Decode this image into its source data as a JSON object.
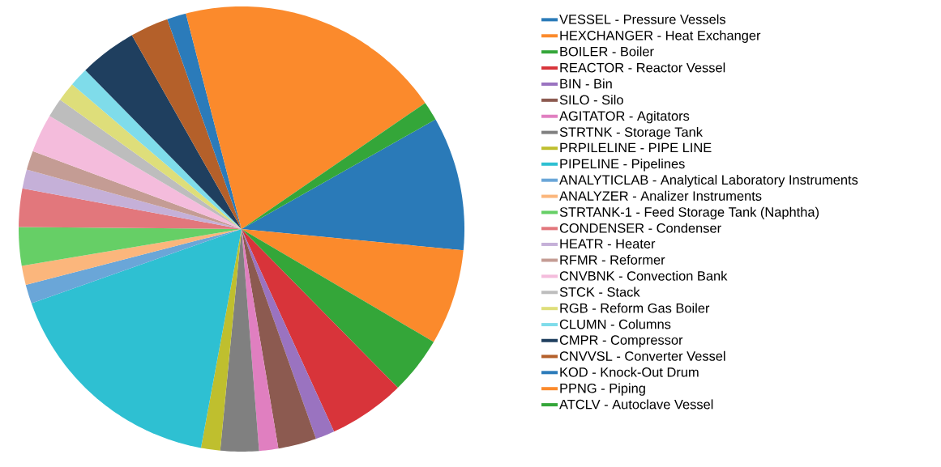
{
  "chart_data": {
    "type": "pie",
    "categories": [
      "VESSEL - Pressure Vessels",
      "HEXCHANGER - Heat Exchanger",
      "BOILER - Boiler",
      "REACTOR - Reactor Vessel",
      "BIN - Bin",
      "SILO - Silo",
      "AGITATOR - Agitators",
      "STRTNK - Storage Tank",
      "PRPILELINE - PIPE LINE",
      "PIPELINE - Pipelines",
      "ANALYTICLAB - Analytical Laboratory Instruments",
      "ANALYZER - Analizer Instruments",
      "STRTANK-1 - Feed Storage Tank (Naphtha)",
      "CONDENSER - Condenser",
      "HEATR - Heater",
      "RFMR - Reformer",
      "CNVBNK - Convection Bank",
      "STCK - Stack",
      "RGB - Reform Gas Boiler",
      "CLUMN - Columns",
      "CMPR - Compressor",
      "CNVVSL - Converter Vessel",
      "KOD - Knock-Out Drum",
      "PPNG - Piping",
      "ATCLV - Autoclave Vessel"
    ],
    "values": [
      9.72,
      6.94,
      4.17,
      5.56,
      1.39,
      2.78,
      1.39,
      2.78,
      1.39,
      16.67,
      1.39,
      1.39,
      2.78,
      2.78,
      1.39,
      1.39,
      2.78,
      1.39,
      1.39,
      1.39,
      4.17,
      2.78,
      1.39,
      19.44,
      1.39
    ],
    "colors": [
      "#2a7ab8",
      "#fb8a2c",
      "#34a639",
      "#d8343a",
      "#9a73c0",
      "#8c5a50",
      "#e07fc0",
      "#808080",
      "#bfbf2e",
      "#2ec0d2",
      "#6aa6d8",
      "#fbb67c",
      "#66cf66",
      "#e2777c",
      "#c5b0d8",
      "#c49c94",
      "#f4bcdc",
      "#bdbdbd",
      "#dede7a",
      "#7fdcea",
      "#1f3f5f",
      "#b4602a",
      "#2b7bba",
      "#fb8a2c",
      "#34a639"
    ],
    "legend": "right"
  }
}
